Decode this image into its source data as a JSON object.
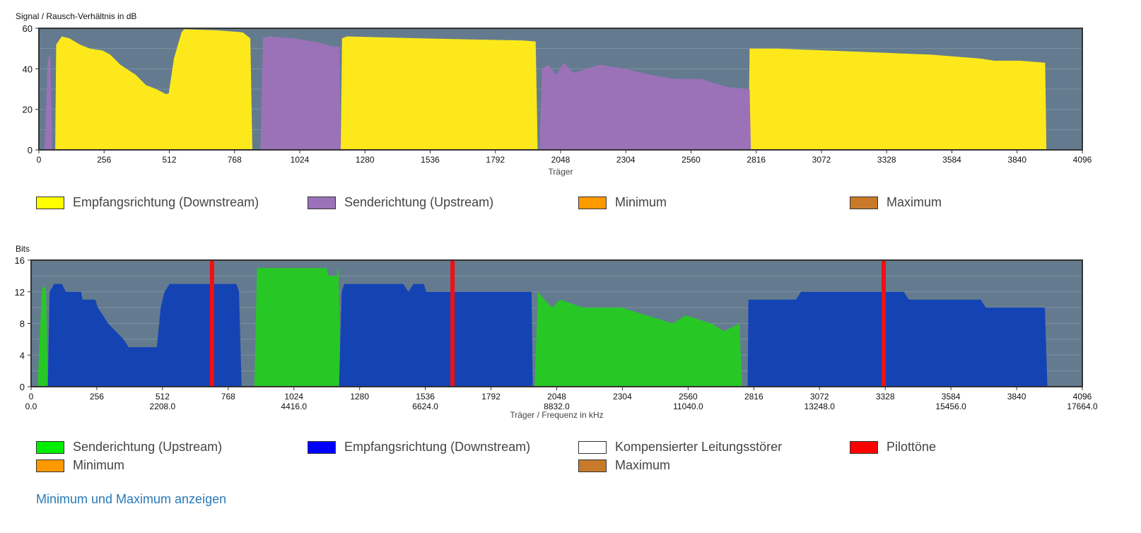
{
  "chart_data": [
    {
      "type": "area",
      "title": "",
      "ylabel": "Signal / Rausch-Verhältnis in dB",
      "xlabel": "Träger",
      "xlim": [
        0,
        4096
      ],
      "ylim": [
        0,
        60
      ],
      "xticks": [
        0,
        256,
        512,
        768,
        1024,
        1280,
        1536,
        1792,
        2048,
        2304,
        2560,
        2816,
        3072,
        3328,
        3584,
        3840,
        4096
      ],
      "yticks": [
        0,
        20,
        40,
        60
      ],
      "background": "#647b8f",
      "series": [
        {
          "name": "Empfangsrichtung (Downstream)",
          "color": "#fde91b",
          "segments": [
            [
              [
                64,
                0
              ],
              [
                68,
                52
              ],
              [
                90,
                56
              ],
              [
                120,
                55
              ],
              [
                160,
                52
              ],
              [
                200,
                50
              ],
              [
                250,
                49
              ],
              [
                280,
                47
              ],
              [
                320,
                42
              ],
              [
                380,
                37
              ],
              [
                420,
                32
              ],
              [
                460,
                30
              ],
              [
                500,
                27.5
              ],
              [
                510,
                28
              ],
              [
                530,
                45
              ],
              [
                560,
                58
              ],
              [
                570,
                59.5
              ],
              [
                700,
                59
              ],
              [
                800,
                58
              ],
              [
                830,
                55
              ],
              [
                838,
                0
              ]
            ],
            [
              [
                1185,
                0
              ],
              [
                1190,
                55
              ],
              [
                1210,
                56
              ],
              [
                1500,
                55
              ],
              [
                1900,
                54
              ],
              [
                1950,
                53.5
              ],
              [
                1958,
                0
              ]
            ],
            [
              [
                2785,
                0
              ],
              [
                2790,
                50
              ],
              [
                2900,
                50
              ],
              [
                3300,
                48
              ],
              [
                3500,
                47
              ],
              [
                3700,
                45
              ],
              [
                3750,
                44
              ],
              [
                3850,
                44
              ],
              [
                3950,
                43
              ],
              [
                3955,
                0
              ]
            ]
          ]
        },
        {
          "name": "Senderichtung (Upstream)",
          "color": "#9b72b8",
          "segments": [
            [
              [
                22,
                0
              ],
              [
                35,
                45
              ],
              [
                45,
                47
              ],
              [
                52,
                0
              ]
            ],
            [
              [
                870,
                0
              ],
              [
                880,
                55
              ],
              [
                900,
                56
              ],
              [
                1000,
                55
              ],
              [
                1100,
                53
              ],
              [
                1150,
                51
              ],
              [
                1180,
                51
              ],
              [
                1185,
                0
              ]
            ],
            [
              [
                1965,
                0
              ],
              [
                1975,
                40
              ],
              [
                2000,
                42
              ],
              [
                2030,
                37
              ],
              [
                2060,
                43
              ],
              [
                2100,
                38
              ],
              [
                2200,
                42
              ],
              [
                2300,
                40
              ],
              [
                2400,
                37
              ],
              [
                2500,
                35
              ],
              [
                2600,
                35
              ],
              [
                2700,
                31
              ],
              [
                2790,
                30
              ],
              [
                2795,
                0
              ]
            ]
          ]
        }
      ],
      "legend": [
        {
          "label": "Empfangsrichtung (Downstream)",
          "color": "#ffff00"
        },
        {
          "label": "Senderichtung (Upstream)",
          "color": "#9b72b8"
        },
        {
          "label": "Minimum",
          "color": "#ff9900"
        },
        {
          "label": "Maximum",
          "color": "#c87a2a"
        }
      ]
    },
    {
      "type": "area",
      "title": "",
      "ylabel": "Bits",
      "xlabel": "Träger / Frequenz in kHz",
      "xlim": [
        0,
        4096
      ],
      "ylim": [
        0,
        16
      ],
      "xticks": [
        0,
        256,
        512,
        768,
        1024,
        1280,
        1536,
        1792,
        2048,
        2304,
        2560,
        2816,
        3072,
        3328,
        3584,
        3840,
        4096
      ],
      "freq_ticks": {
        "0": "0.0",
        "512": "2208.0",
        "1024": "4416.0",
        "1536": "6624.0",
        "2048": "8832.0",
        "2560": "11040.0",
        "3072": "13248.0",
        "3584": "15456.0",
        "4096": "17664.0"
      },
      "yticks": [
        0,
        4,
        8,
        12,
        16
      ],
      "background": "#647b8f",
      "series": [
        {
          "name": "Senderichtung (Upstream)",
          "color": "#27c826",
          "segments": [
            [
              [
                25,
                0
              ],
              [
                42,
                12
              ],
              [
                48,
                13
              ],
              [
                58,
                12
              ],
              [
                65,
                0
              ]
            ],
            [
              [
                870,
                0
              ],
              [
                880,
                15
              ],
              [
                1150,
                15
              ],
              [
                1160,
                14
              ],
              [
                1190,
                14
              ],
              [
                1198,
                15
              ],
              [
                1205,
                0
              ]
            ],
            [
              [
                1962,
                0
              ],
              [
                1975,
                12
              ],
              [
                2000,
                11
              ],
              [
                2030,
                10
              ],
              [
                2060,
                11
              ],
              [
                2150,
                10
              ],
              [
                2300,
                10
              ],
              [
                2400,
                9
              ],
              [
                2500,
                8
              ],
              [
                2550,
                9
              ],
              [
                2650,
                8
              ],
              [
                2700,
                7
              ],
              [
                2760,
                8
              ],
              [
                2770,
                0
              ]
            ]
          ]
        },
        {
          "name": "Empfangsrichtung (Downstream)",
          "color": "#1443b4",
          "segments": [
            [
              [
                65,
                0
              ],
              [
                72,
                12
              ],
              [
                90,
                13
              ],
              [
                120,
                13
              ],
              [
                135,
                12
              ],
              [
                195,
                12
              ],
              [
                200,
                11
              ],
              [
                250,
                11
              ],
              [
                260,
                10
              ],
              [
                280,
                9
              ],
              [
                300,
                8
              ],
              [
                330,
                7
              ],
              [
                360,
                6
              ],
              [
                380,
                5
              ],
              [
                490,
                5
              ],
              [
                505,
                10
              ],
              [
                520,
                12
              ],
              [
                540,
                13
              ],
              [
                800,
                13
              ],
              [
                810,
                12
              ],
              [
                820,
                0
              ]
            ],
            [
              [
                1200,
                0
              ],
              [
                1210,
                12
              ],
              [
                1220,
                13
              ],
              [
                1450,
                13
              ],
              [
                1470,
                12
              ],
              [
                1490,
                13
              ],
              [
                1530,
                13
              ],
              [
                1540,
                12
              ],
              [
                1950,
                12
              ],
              [
                1955,
                0
              ]
            ],
            [
              [
                2792,
                0
              ],
              [
                2795,
                11
              ],
              [
                2980,
                11
              ],
              [
                3000,
                12
              ],
              [
                3400,
                12
              ],
              [
                3420,
                11
              ],
              [
                3700,
                11
              ],
              [
                3720,
                10
              ],
              [
                3950,
                10
              ],
              [
                3960,
                0
              ]
            ]
          ]
        }
      ],
      "pilot_tones": [
        705,
        1642,
        3322
      ],
      "legend": [
        {
          "label": "Senderichtung (Upstream)",
          "color": "#00ee00"
        },
        {
          "label": "Empfangsrichtung (Downstream)",
          "color": "#0000ff"
        },
        {
          "label": "Kompensierter Leitungsstörer",
          "color": "#ffffff"
        },
        {
          "label": "Pilottöne",
          "color": "#ff0000"
        },
        {
          "label": "Minimum",
          "color": "#ff9900"
        },
        {
          "label": "Maximum",
          "color": "#c87a2a"
        }
      ]
    }
  ],
  "link_label": "Minimum und Maximum anzeigen"
}
